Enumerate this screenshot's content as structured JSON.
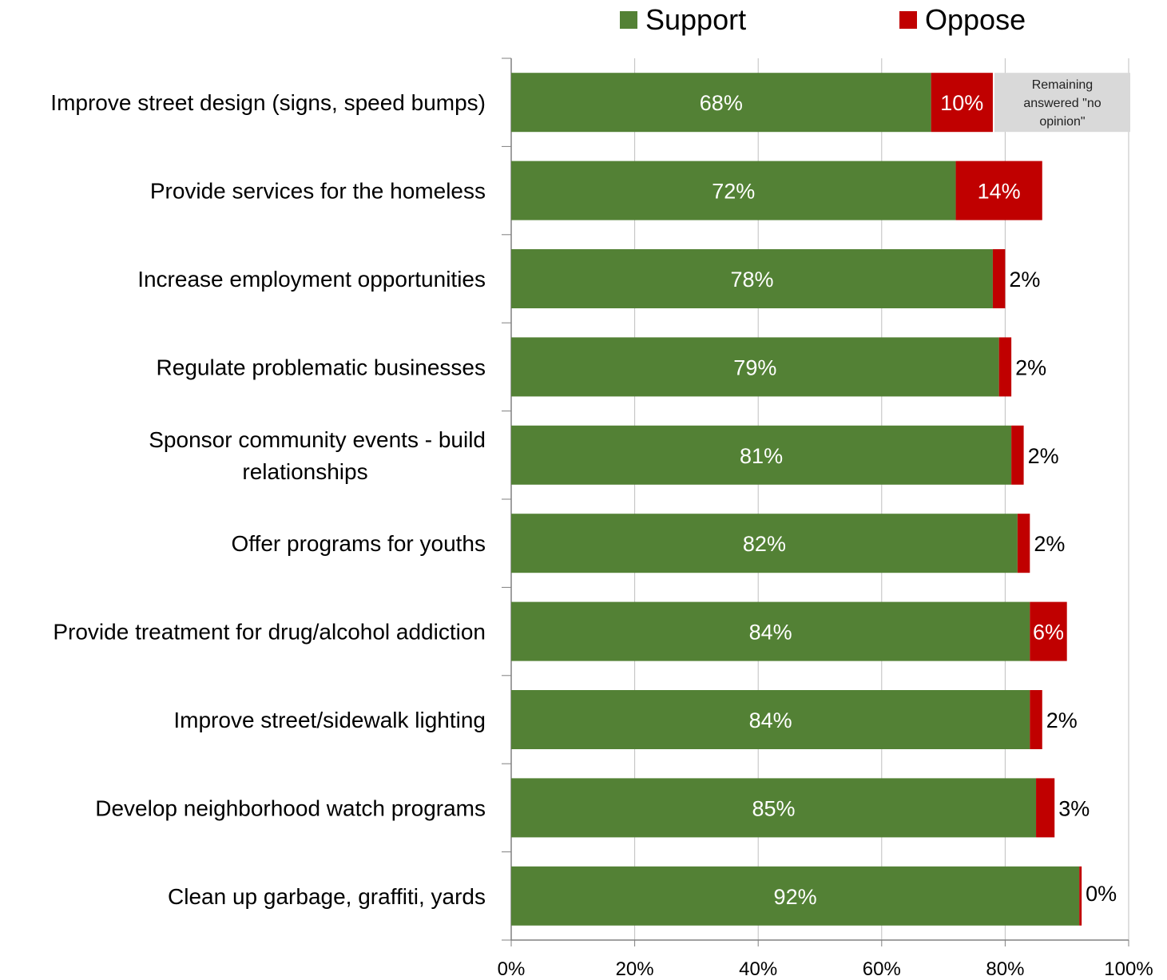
{
  "legend": {
    "support_label": "Support",
    "oppose_label": "Oppose"
  },
  "colors": {
    "support": "#538135",
    "oppose": "#C00000",
    "note_box": "#D9D9D9",
    "grid": "#BFBFBF",
    "axis": "#808080"
  },
  "note": {
    "lines": [
      "Remaining",
      "answered \"no",
      "opinion\""
    ]
  },
  "chart_data": {
    "type": "bar",
    "orientation": "horizontal",
    "stacked": true,
    "categories": [
      "Improve street design (signs, speed bumps)",
      "Provide services for the homeless",
      "Increase employment opportunities",
      "Regulate problematic businesses",
      "Sponsor community events - build relationships",
      "Offer programs for youths",
      "Provide treatment for drug/alcohol addiction",
      "Improve street/sidewalk lighting",
      "Develop neighborhood watch programs",
      "Clean up garbage, graffiti, yards"
    ],
    "series": [
      {
        "name": "Support",
        "values": [
          68,
          72,
          78,
          79,
          81,
          82,
          84,
          84,
          85,
          92
        ],
        "labels": [
          "68%",
          "72%",
          "78%",
          "79%",
          "81%",
          "82%",
          "84%",
          "84%",
          "85%",
          "92%"
        ]
      },
      {
        "name": "Oppose",
        "values": [
          10,
          14,
          2,
          2,
          2,
          2,
          6,
          2,
          3,
          0
        ],
        "labels": [
          "10%",
          "14%",
          "2%",
          "2%",
          "2%",
          "2%",
          "6%",
          "2%",
          "3%",
          "0%"
        ]
      }
    ],
    "xlim": [
      0,
      100
    ],
    "x_ticks": [
      "0%",
      "20%",
      "40%",
      "60%",
      "80%",
      "100%"
    ],
    "grid": true,
    "legend_position": "top"
  }
}
